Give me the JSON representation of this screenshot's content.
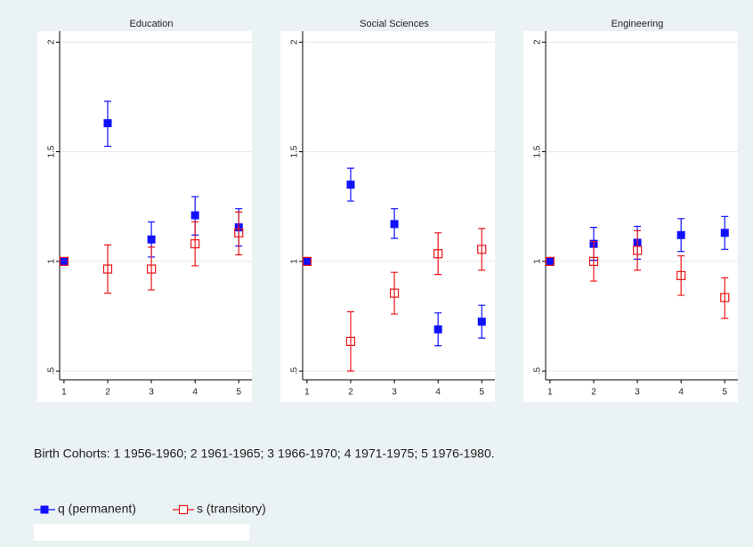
{
  "chart_data": [
    {
      "type": "scatter",
      "title": "Education",
      "x": [
        1,
        2,
        3,
        4,
        5
      ],
      "xlim": [
        0.9,
        5.3
      ],
      "xticks": [
        1,
        2,
        3,
        4,
        5
      ],
      "ylim": [
        0.46,
        2.05
      ],
      "yticks": [
        {
          "value": 0.5,
          "label": ".5"
        },
        1,
        1.5,
        2
      ],
      "grid": true,
      "series": [
        {
          "name": "q (permanent)",
          "color": "#1010ff",
          "marker": "filled",
          "values": [
            1,
            1.63,
            1.1,
            1.21,
            1.155
          ],
          "lower": [
            null,
            1.525,
            1.02,
            1.12,
            1.07
          ],
          "upper": [
            null,
            1.73,
            1.18,
            1.295,
            1.24
          ]
        },
        {
          "name": "s (transitory)",
          "color": "#e8161a",
          "marker": "hollow",
          "values": [
            1,
            0.965,
            0.965,
            1.08,
            1.13
          ],
          "lower": [
            null,
            0.855,
            0.87,
            0.98,
            1.03
          ],
          "upper": [
            null,
            1.075,
            1.065,
            1.18,
            1.225
          ]
        }
      ]
    },
    {
      "type": "scatter",
      "title": "Social Sciences",
      "x": [
        1,
        2,
        3,
        4,
        5
      ],
      "xlim": [
        0.9,
        5.3
      ],
      "xticks": [
        1,
        2,
        3,
        4,
        5
      ],
      "ylim": [
        0.46,
        2.05
      ],
      "yticks": [
        {
          "value": 0.5,
          "label": ".5"
        },
        1,
        1.5,
        2
      ],
      "grid": true,
      "series": [
        {
          "name": "q (permanent)",
          "color": "#1010ff",
          "marker": "filled",
          "values": [
            1,
            1.35,
            1.17,
            0.69,
            0.725
          ],
          "lower": [
            null,
            1.275,
            1.105,
            0.615,
            0.65
          ],
          "upper": [
            null,
            1.425,
            1.24,
            0.765,
            0.8
          ]
        },
        {
          "name": "s (transitory)",
          "color": "#e8161a",
          "marker": "hollow",
          "values": [
            1,
            0.635,
            0.855,
            1.035,
            1.055
          ],
          "lower": [
            null,
            0.5,
            0.76,
            0.94,
            0.96
          ],
          "upper": [
            null,
            0.77,
            0.95,
            1.13,
            1.15
          ]
        }
      ]
    },
    {
      "type": "scatter",
      "title": "Engineering",
      "x": [
        1,
        2,
        3,
        4,
        5
      ],
      "xlim": [
        0.9,
        5.3
      ],
      "xticks": [
        1,
        2,
        3,
        4,
        5
      ],
      "ylim": [
        0.46,
        2.05
      ],
      "yticks": [
        {
          "value": 0.5,
          "label": ".5"
        },
        1,
        1.5,
        2
      ],
      "grid": true,
      "series": [
        {
          "name": "q (permanent)",
          "color": "#1010ff",
          "marker": "filled",
          "values": [
            1,
            1.08,
            1.085,
            1.12,
            1.13
          ],
          "lower": [
            null,
            1.005,
            1.01,
            1.045,
            1.055
          ],
          "upper": [
            null,
            1.155,
            1.16,
            1.195,
            1.205
          ]
        },
        {
          "name": "s (transitory)",
          "color": "#e8161a",
          "marker": "hollow",
          "values": [
            1,
            1.0,
            1.05,
            0.935,
            0.835
          ],
          "lower": [
            null,
            0.91,
            0.96,
            0.845,
            0.74
          ],
          "upper": [
            null,
            1.09,
            1.14,
            1.025,
            0.925
          ]
        }
      ]
    }
  ],
  "note": "Birth Cohorts: 1 1956-1960; 2 1961-1965; 3 1966-1970; 4 1971-1975; 5 1976-1980."
}
